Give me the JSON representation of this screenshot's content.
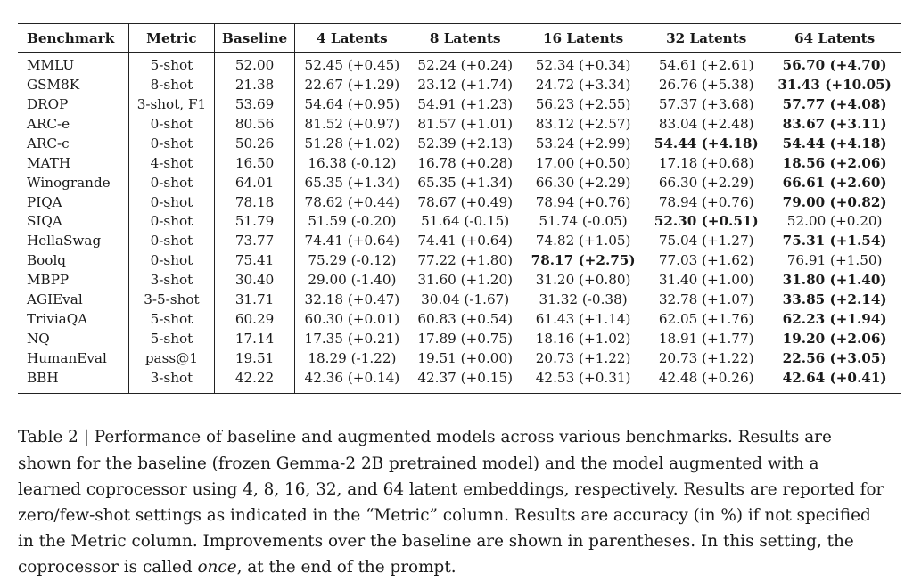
{
  "table": {
    "headers": [
      "Benchmark",
      "Metric",
      "Baseline",
      "4 Latents",
      "8 Latents",
      "16 Latents",
      "32 Latents",
      "64 Latents"
    ],
    "rows": [
      {
        "benchmark": "MMLU",
        "metric": "5-shot",
        "baseline": "52.00",
        "cells": [
          "52.45 (+0.45)",
          "52.24 (+0.24)",
          "52.34 (+0.34)",
          "54.61 (+2.61)",
          "56.70 (+4.70)"
        ],
        "bold": [
          4
        ]
      },
      {
        "benchmark": "GSM8K",
        "metric": "8-shot",
        "baseline": "21.38",
        "cells": [
          "22.67 (+1.29)",
          "23.12 (+1.74)",
          "24.72 (+3.34)",
          "26.76 (+5.38)",
          "31.43 (+10.05)"
        ],
        "bold": [
          4
        ]
      },
      {
        "benchmark": "DROP",
        "metric": "3-shot, F1",
        "baseline": "53.69",
        "cells": [
          "54.64 (+0.95)",
          "54.91 (+1.23)",
          "56.23 (+2.55)",
          "57.37 (+3.68)",
          "57.77 (+4.08)"
        ],
        "bold": [
          4
        ]
      },
      {
        "benchmark": "ARC-e",
        "metric": "0-shot",
        "baseline": "80.56",
        "cells": [
          "81.52 (+0.97)",
          "81.57 (+1.01)",
          "83.12 (+2.57)",
          "83.04 (+2.48)",
          "83.67 (+3.11)"
        ],
        "bold": [
          4
        ]
      },
      {
        "benchmark": "ARC-c",
        "metric": "0-shot",
        "baseline": "50.26",
        "cells": [
          "51.28 (+1.02)",
          "52.39 (+2.13)",
          "53.24 (+2.99)",
          "54.44 (+4.18)",
          "54.44 (+4.18)"
        ],
        "bold": [
          3,
          4
        ]
      },
      {
        "benchmark": "MATH",
        "metric": "4-shot",
        "baseline": "16.50",
        "cells": [
          "16.38 (-0.12)",
          "16.78 (+0.28)",
          "17.00 (+0.50)",
          "17.18 (+0.68)",
          "18.56 (+2.06)"
        ],
        "bold": [
          4
        ]
      },
      {
        "benchmark": "Winogrande",
        "metric": "0-shot",
        "baseline": "64.01",
        "cells": [
          "65.35 (+1.34)",
          "65.35 (+1.34)",
          "66.30 (+2.29)",
          "66.30 (+2.29)",
          "66.61 (+2.60)"
        ],
        "bold": [
          4
        ]
      },
      {
        "benchmark": "PIQA",
        "metric": "0-shot",
        "baseline": "78.18",
        "cells": [
          "78.62 (+0.44)",
          "78.67 (+0.49)",
          "78.94 (+0.76)",
          "78.94 (+0.76)",
          "79.00 (+0.82)"
        ],
        "bold": [
          4
        ]
      },
      {
        "benchmark": "SIQA",
        "metric": "0-shot",
        "baseline": "51.79",
        "cells": [
          "51.59 (-0.20)",
          "51.64 (-0.15)",
          "51.74 (-0.05)",
          "52.30 (+0.51)",
          "52.00 (+0.20)"
        ],
        "bold": [
          3
        ]
      },
      {
        "benchmark": "HellaSwag",
        "metric": "0-shot",
        "baseline": "73.77",
        "cells": [
          "74.41 (+0.64)",
          "74.41 (+0.64)",
          "74.82 (+1.05)",
          "75.04 (+1.27)",
          "75.31 (+1.54)"
        ],
        "bold": [
          4
        ]
      },
      {
        "benchmark": "Boolq",
        "metric": "0-shot",
        "baseline": "75.41",
        "cells": [
          "75.29 (-0.12)",
          "77.22 (+1.80)",
          "78.17 (+2.75)",
          "77.03 (+1.62)",
          "76.91 (+1.50)"
        ],
        "bold": [
          2
        ]
      },
      {
        "benchmark": "MBPP",
        "metric": "3-shot",
        "baseline": "30.40",
        "cells": [
          "29.00 (-1.40)",
          "31.60 (+1.20)",
          "31.20 (+0.80)",
          "31.40 (+1.00)",
          "31.80 (+1.40)"
        ],
        "bold": [
          4
        ]
      },
      {
        "benchmark": "AGIEval",
        "metric": "3-5-shot",
        "baseline": "31.71",
        "cells": [
          "32.18 (+0.47)",
          "30.04 (-1.67)",
          "31.32 (-0.38)",
          "32.78 (+1.07)",
          "33.85 (+2.14)"
        ],
        "bold": [
          4
        ]
      },
      {
        "benchmark": "TriviaQA",
        "metric": "5-shot",
        "baseline": "60.29",
        "cells": [
          "60.30 (+0.01)",
          "60.83 (+0.54)",
          "61.43 (+1.14)",
          "62.05 (+1.76)",
          "62.23 (+1.94)"
        ],
        "bold": [
          4
        ]
      },
      {
        "benchmark": "NQ",
        "metric": "5-shot",
        "baseline": "17.14",
        "cells": [
          "17.35 (+0.21)",
          "17.89 (+0.75)",
          "18.16 (+1.02)",
          "18.91 (+1.77)",
          "19.20 (+2.06)"
        ],
        "bold": [
          4
        ]
      },
      {
        "benchmark": "HumanEval",
        "metric": "pass@1",
        "baseline": "19.51",
        "cells": [
          "18.29 (-1.22)",
          "19.51 (+0.00)",
          "20.73 (+1.22)",
          "20.73 (+1.22)",
          "22.56 (+3.05)"
        ],
        "bold": [
          4
        ]
      },
      {
        "benchmark": "BBH",
        "metric": "3-shot",
        "baseline": "42.22",
        "cells": [
          "42.36 (+0.14)",
          "42.37 (+0.15)",
          "42.53 (+0.31)",
          "42.48 (+0.26)",
          "42.64 (+0.41)"
        ],
        "bold": [
          4
        ]
      }
    ]
  },
  "caption": {
    "before_em": "Table 2 | Performance of baseline and augmented models across various benchmarks. Results are shown for the baseline (frozen Gemma-2 2B pretrained model) and the model augmented with a learned coprocessor using 4, 8, 16, 32, and 64 latent embeddings, respectively. Results are reported for zero/few-shot settings as indicated in the “Metric” column. Results are accuracy (in %) if not specified in the Metric column. Improvements over the baseline are shown in parentheses. In this setting, the coprocessor is called ",
    "em": "once",
    "after_em": ", at the end of the prompt."
  }
}
